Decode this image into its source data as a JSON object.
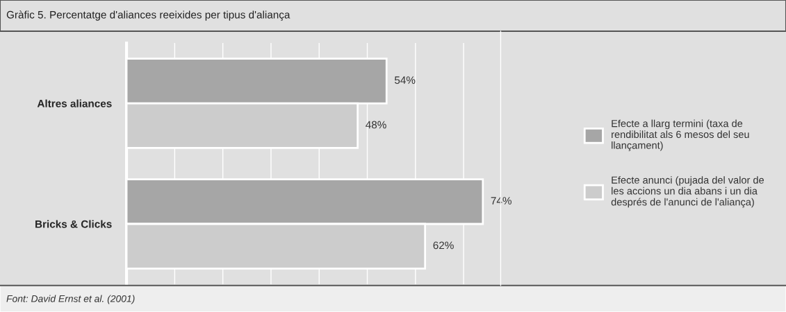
{
  "chart_data": {
    "type": "bar",
    "orientation": "horizontal",
    "title": "Gràfic 5. Percentatge d'aliances reeixides per tipus d'aliança",
    "categories": [
      "Altres aliances",
      "Bricks & Clicks"
    ],
    "series": [
      {
        "name": "Efecte a llarg termini (taxa de\nrendibilitat als 6 mesos del seu\nllançament)",
        "color": "#a6a6a6",
        "values": [
          54,
          74
        ],
        "value_labels": [
          "54%",
          "74%"
        ]
      },
      {
        "name": "Efecte anunci (pujada del valor de\nles accions un dia abans i un dia\ndesprés de l'anunci de l'aliança)",
        "color": "#cccccc",
        "values": [
          48,
          62
        ],
        "value_labels": [
          "48%",
          "62%"
        ]
      }
    ],
    "grid": "x",
    "legend": "right",
    "tick_labels": "y",
    "annotations": [
      "Font: David Ernst et al. (2001)"
    ]
  }
}
